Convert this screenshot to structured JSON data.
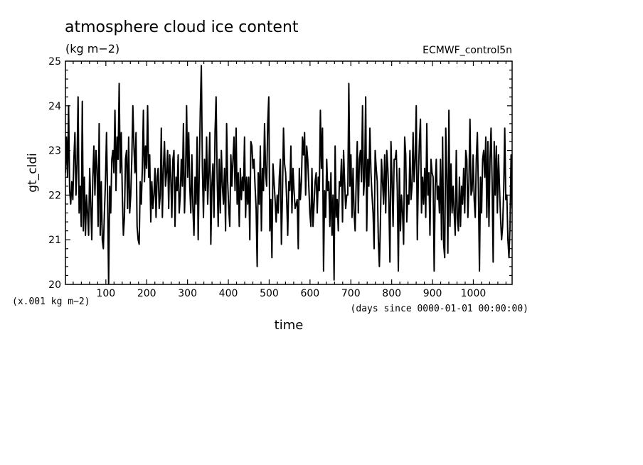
{
  "chart_data": {
    "type": "line",
    "title": "atmosphere cloud ice content",
    "units": "(kg m−2)",
    "run_label": "ECMWF_control5n",
    "ylabel": "gt_cldi",
    "xlabel": "time",
    "y_scale_note": "(x.001 kg m−2)",
    "x_note": "(days since 0000-01-01 00:00:00)",
    "xlim": [
      1,
      1095
    ],
    "ylim": [
      20,
      25
    ],
    "x_ticks": [
      100,
      200,
      300,
      400,
      500,
      600,
      700,
      800,
      900,
      1000
    ],
    "y_ticks": [
      20,
      21,
      22,
      23,
      24,
      25
    ],
    "grid": false,
    "series": [
      {
        "values": [
          22.5,
          23.3,
          22.4,
          24.0,
          22.1,
          21.8,
          22.3,
          21.9,
          22.8,
          23.4,
          22.0,
          22.7,
          24.2,
          21.6,
          22.2,
          21.3,
          24.1,
          21.2,
          22.4,
          21.1,
          22.0,
          21.6,
          21.1,
          22.6,
          21.8,
          21.0,
          22.4,
          23.1,
          22.0,
          23.0,
          22.6,
          21.3,
          23.6,
          21.1,
          22.3,
          21.0,
          20.8,
          21.6,
          22.3,
          23.4,
          22.0,
          20.0,
          22.2,
          21.6,
          22.8,
          23.0,
          22.5,
          23.9,
          22.1,
          23.3,
          22.8,
          24.5,
          22.5,
          23.4,
          22.0,
          21.1,
          21.5,
          22.8,
          23.0,
          21.7,
          23.3,
          21.6,
          22.0,
          22.8,
          24.0,
          23.1,
          22.5,
          23.4,
          21.3,
          21.0,
          20.9,
          22.3,
          21.8,
          22.6,
          23.9,
          22.3,
          23.1,
          22.6,
          24.0,
          22.4,
          22.9,
          21.4,
          22.3,
          21.7,
          22.0,
          22.6,
          21.5,
          22.4,
          22.6,
          21.7,
          22.0,
          23.5,
          21.5,
          22.6,
          23.2,
          22.2,
          22.5,
          23.0,
          21.7,
          22.9,
          22.4,
          21.5,
          22.8,
          23.0,
          21.3,
          22.4,
          22.1,
          22.9,
          21.6,
          22.0,
          22.8,
          22.2,
          23.6,
          21.6,
          22.4,
          24.0,
          22.4,
          23.4,
          22.2,
          21.6,
          22.9,
          21.7,
          21.1,
          22.4,
          21.8,
          23.3,
          21.0,
          22.5,
          23.9,
          24.9,
          22.6,
          21.5,
          22.8,
          22.1,
          23.3,
          21.8,
          22.5,
          23.4,
          20.9,
          22.2,
          22.7,
          21.5,
          23.4,
          24.2,
          22.4,
          21.3,
          22.8,
          21.6,
          23.0,
          22.2,
          21.8,
          22.6,
          21.2,
          23.6,
          22.3,
          21.7,
          21.3,
          22.9,
          22.2,
          22.8,
          23.3,
          22.1,
          23.5,
          21.8,
          22.5,
          21.3,
          22.6,
          21.9,
          22.4,
          22.1,
          23.3,
          21.5,
          22.4,
          21.8,
          22.4,
          21.0,
          23.2,
          23.1,
          22.6,
          22.8,
          22.2,
          21.7,
          20.4,
          22.5,
          21.8,
          23.1,
          21.2,
          22.6,
          22.1,
          23.6,
          22.5,
          22.2,
          23.6,
          24.2,
          21.2,
          21.9,
          20.6,
          22.7,
          22.3,
          21.9,
          21.4,
          22.0,
          21.6,
          22.4,
          22.8,
          20.9,
          22.0,
          23.5,
          22.7,
          22.5,
          21.9,
          21.1,
          22.3,
          22.1,
          23.1,
          21.6,
          22.6,
          22.1,
          21.7,
          21.8,
          21.9,
          20.8,
          22.6,
          21.9,
          22.3,
          23.3,
          22.9,
          23.4,
          22.0,
          23.1,
          22.8,
          22.2,
          21.6,
          21.3,
          22.6,
          21.3,
          21.8,
          22.3,
          22.5,
          21.6,
          22.4,
          22.1,
          23.9,
          22.6,
          23.5,
          20.3,
          22.1,
          21.5,
          22.8,
          22.1,
          22.3,
          21.3,
          22.5,
          21.1,
          22.0,
          20.1,
          23.1,
          21.5,
          21.9,
          21.2,
          22.3,
          22.2,
          22.8,
          21.4,
          23.0,
          22.3,
          21.7,
          22.0,
          22.0,
          24.5,
          22.2,
          22.9,
          21.5,
          22.6,
          21.6,
          21.2,
          22.3,
          23.2,
          21.6,
          22.8,
          23.0,
          22.3,
          24.0,
          22.0,
          22.4,
          24.2,
          21.2,
          22.8,
          22.2,
          23.5,
          22.5,
          22.0,
          21.6,
          20.8,
          23.0,
          22.6,
          22.3,
          21.0,
          20.4,
          21.4,
          22.8,
          22.3,
          21.8,
          22.9,
          21.6,
          23.0,
          22.6,
          21.9,
          20.5,
          23.2,
          22.3,
          21.3,
          22.8,
          22.8,
          23.0,
          22.1,
          20.3,
          22.6,
          21.2,
          22.0,
          21.6,
          20.9,
          23.3,
          22.9,
          21.4,
          22.0,
          21.8,
          23.0,
          21.9,
          22.2,
          23.4,
          22.3,
          22.8,
          24.0,
          21.0,
          22.4,
          23.2,
          23.7,
          21.6,
          22.4,
          21.8,
          22.6,
          21.5,
          23.6,
          22.0,
          22.5,
          21.1,
          22.8,
          22.5,
          22.4,
          20.3,
          22.2,
          22.8,
          21.9,
          22.2,
          21.6,
          22.8,
          21.0,
          23.3,
          20.9,
          20.6,
          23.5,
          22.4,
          20.7,
          23.9,
          21.3,
          22.7,
          21.6,
          22.2,
          21.6,
          21.1,
          23.0,
          21.5,
          21.2,
          22.4,
          21.3,
          22.2,
          21.8,
          22.6,
          21.6,
          23.0,
          22.8,
          21.5,
          22.3,
          23.7,
          22.0,
          22.1,
          22.9,
          21.9,
          21.5,
          22.8,
          23.4,
          22.1,
          20.3,
          22.4,
          21.6,
          22.8,
          23.0,
          22.4,
          23.3,
          21.5,
          23.2,
          21.3,
          22.8,
          23.5,
          22.3,
          20.5,
          23.2,
          22.0,
          23.1,
          21.6,
          22.9,
          22.2,
          21.5,
          21.0,
          21.3,
          22.1,
          23.5,
          21.9,
          22.0,
          21.0,
          20.6,
          21.3,
          22.9,
          21.7
        ]
      }
    ]
  }
}
